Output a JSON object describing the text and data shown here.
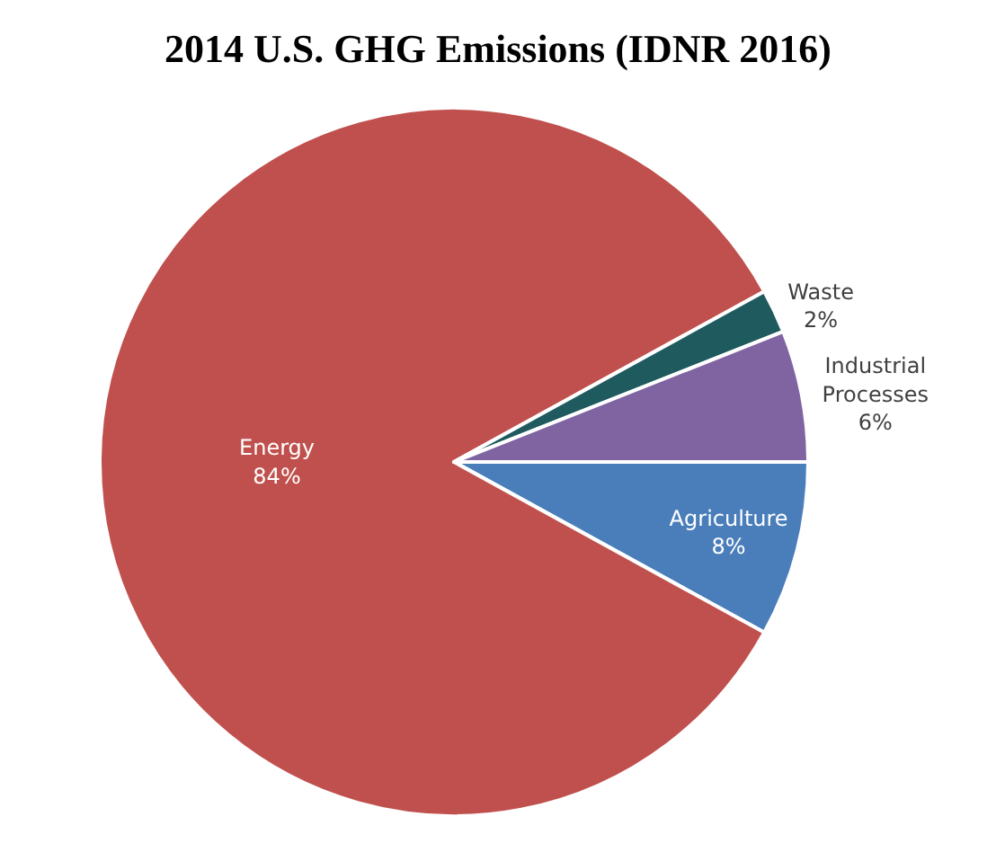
{
  "chart_data": {
    "type": "pie",
    "title": "2014 U.S. GHG Emissions (IDNR 2016)",
    "categories": [
      "Agriculture",
      "Energy",
      "Waste",
      "Industrial Processes"
    ],
    "values": [
      8,
      84,
      2,
      6
    ],
    "value_labels": [
      "8%",
      "84%",
      "2%",
      "6%"
    ],
    "colors": [
      "#4a7ebb",
      "#c0504d",
      "#1f5a5e",
      "#8064a2"
    ],
    "legend": false
  }
}
